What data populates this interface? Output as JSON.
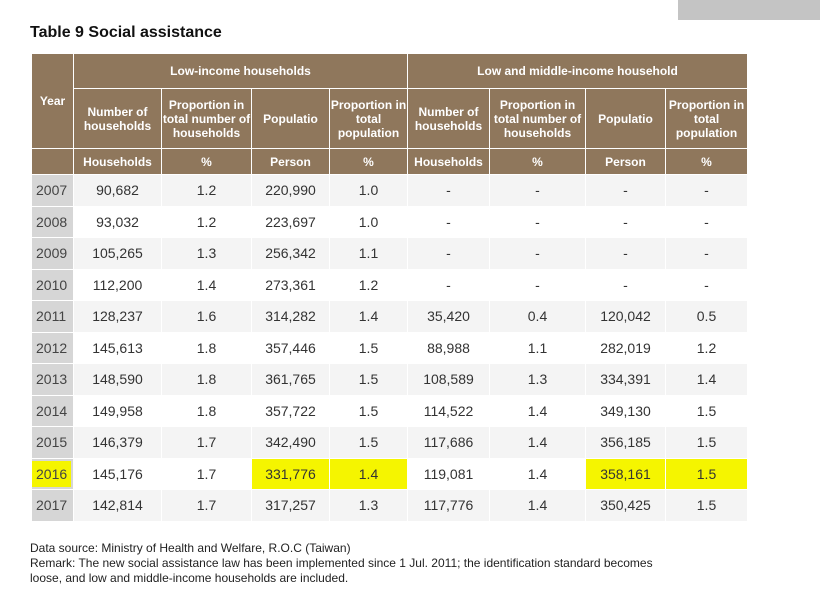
{
  "title": "Table 9 Social assistance",
  "group_low": "Low-income households",
  "group_mid": "Low and middle-income household",
  "col_year": "Year",
  "col_num_households": "Number of households",
  "col_prop_households": "Proportion in total number of households",
  "col_population": "Populatio",
  "col_prop_population": "Proportion in total population",
  "unit_households": "Households",
  "unit_percent": "%",
  "unit_person": "Person",
  "rows": [
    {
      "year": "2007",
      "low_n": "90,682",
      "low_ph": "1.2",
      "low_pop": "220,990",
      "low_pp": "1.0",
      "mid_n": "-",
      "mid_ph": "-",
      "mid_pop": "-",
      "mid_pp": "-"
    },
    {
      "year": "2008",
      "low_n": "93,032",
      "low_ph": "1.2",
      "low_pop": "223,697",
      "low_pp": "1.0",
      "mid_n": "-",
      "mid_ph": "-",
      "mid_pop": "-",
      "mid_pp": "-"
    },
    {
      "year": "2009",
      "low_n": "105,265",
      "low_ph": "1.3",
      "low_pop": "256,342",
      "low_pp": "1.1",
      "mid_n": "-",
      "mid_ph": "-",
      "mid_pop": "-",
      "mid_pp": "-"
    },
    {
      "year": "2010",
      "low_n": "112,200",
      "low_ph": "1.4",
      "low_pop": "273,361",
      "low_pp": "1.2",
      "mid_n": "-",
      "mid_ph": "-",
      "mid_pop": "-",
      "mid_pp": "-"
    },
    {
      "year": "2011",
      "low_n": "128,237",
      "low_ph": "1.6",
      "low_pop": "314,282",
      "low_pp": "1.4",
      "mid_n": "35,420",
      "mid_ph": "0.4",
      "mid_pop": "120,042",
      "mid_pp": "0.5"
    },
    {
      "year": "2012",
      "low_n": "145,613",
      "low_ph": "1.8",
      "low_pop": "357,446",
      "low_pp": "1.5",
      "mid_n": "88,988",
      "mid_ph": "1.1",
      "mid_pop": "282,019",
      "mid_pp": "1.2"
    },
    {
      "year": "2013",
      "low_n": "148,590",
      "low_ph": "1.8",
      "low_pop": "361,765",
      "low_pp": "1.5",
      "mid_n": "108,589",
      "mid_ph": "1.3",
      "mid_pop": "334,391",
      "mid_pp": "1.4"
    },
    {
      "year": "2014",
      "low_n": "149,958",
      "low_ph": "1.8",
      "low_pop": "357,722",
      "low_pp": "1.5",
      "mid_n": "114,522",
      "mid_ph": "1.4",
      "mid_pop": "349,130",
      "mid_pp": "1.5"
    },
    {
      "year": "2015",
      "low_n": "146,379",
      "low_ph": "1.7",
      "low_pop": "342,490",
      "low_pp": "1.5",
      "mid_n": "117,686",
      "mid_ph": "1.4",
      "mid_pop": "356,185",
      "mid_pp": "1.5"
    },
    {
      "year": "2016",
      "low_n": "145,176",
      "low_ph": "1.7",
      "low_pop": "331,776",
      "low_pp": "1.4",
      "mid_n": "119,081",
      "mid_ph": "1.4",
      "mid_pop": "358,161",
      "mid_pp": "1.5"
    },
    {
      "year": "2017",
      "low_n": "142,814",
      "low_ph": "1.7",
      "low_pop": "317,257",
      "low_pp": "1.3",
      "mid_n": "117,776",
      "mid_ph": "1.4",
      "mid_pop": "350,425",
      "mid_pp": "1.5"
    }
  ],
  "highlight_row_year": "2016",
  "highlight_color": "#f5f500",
  "header_color": "#8f775c",
  "data_source": "Data source: Ministry of Health and Welfare, R.O.C (Taiwan)",
  "remark_line1": "Remark: The new social assistance law has been implemented since 1 Jul. 2011; the identification standard becomes",
  "remark_line2": "loose, and low and middle-income households are included."
}
